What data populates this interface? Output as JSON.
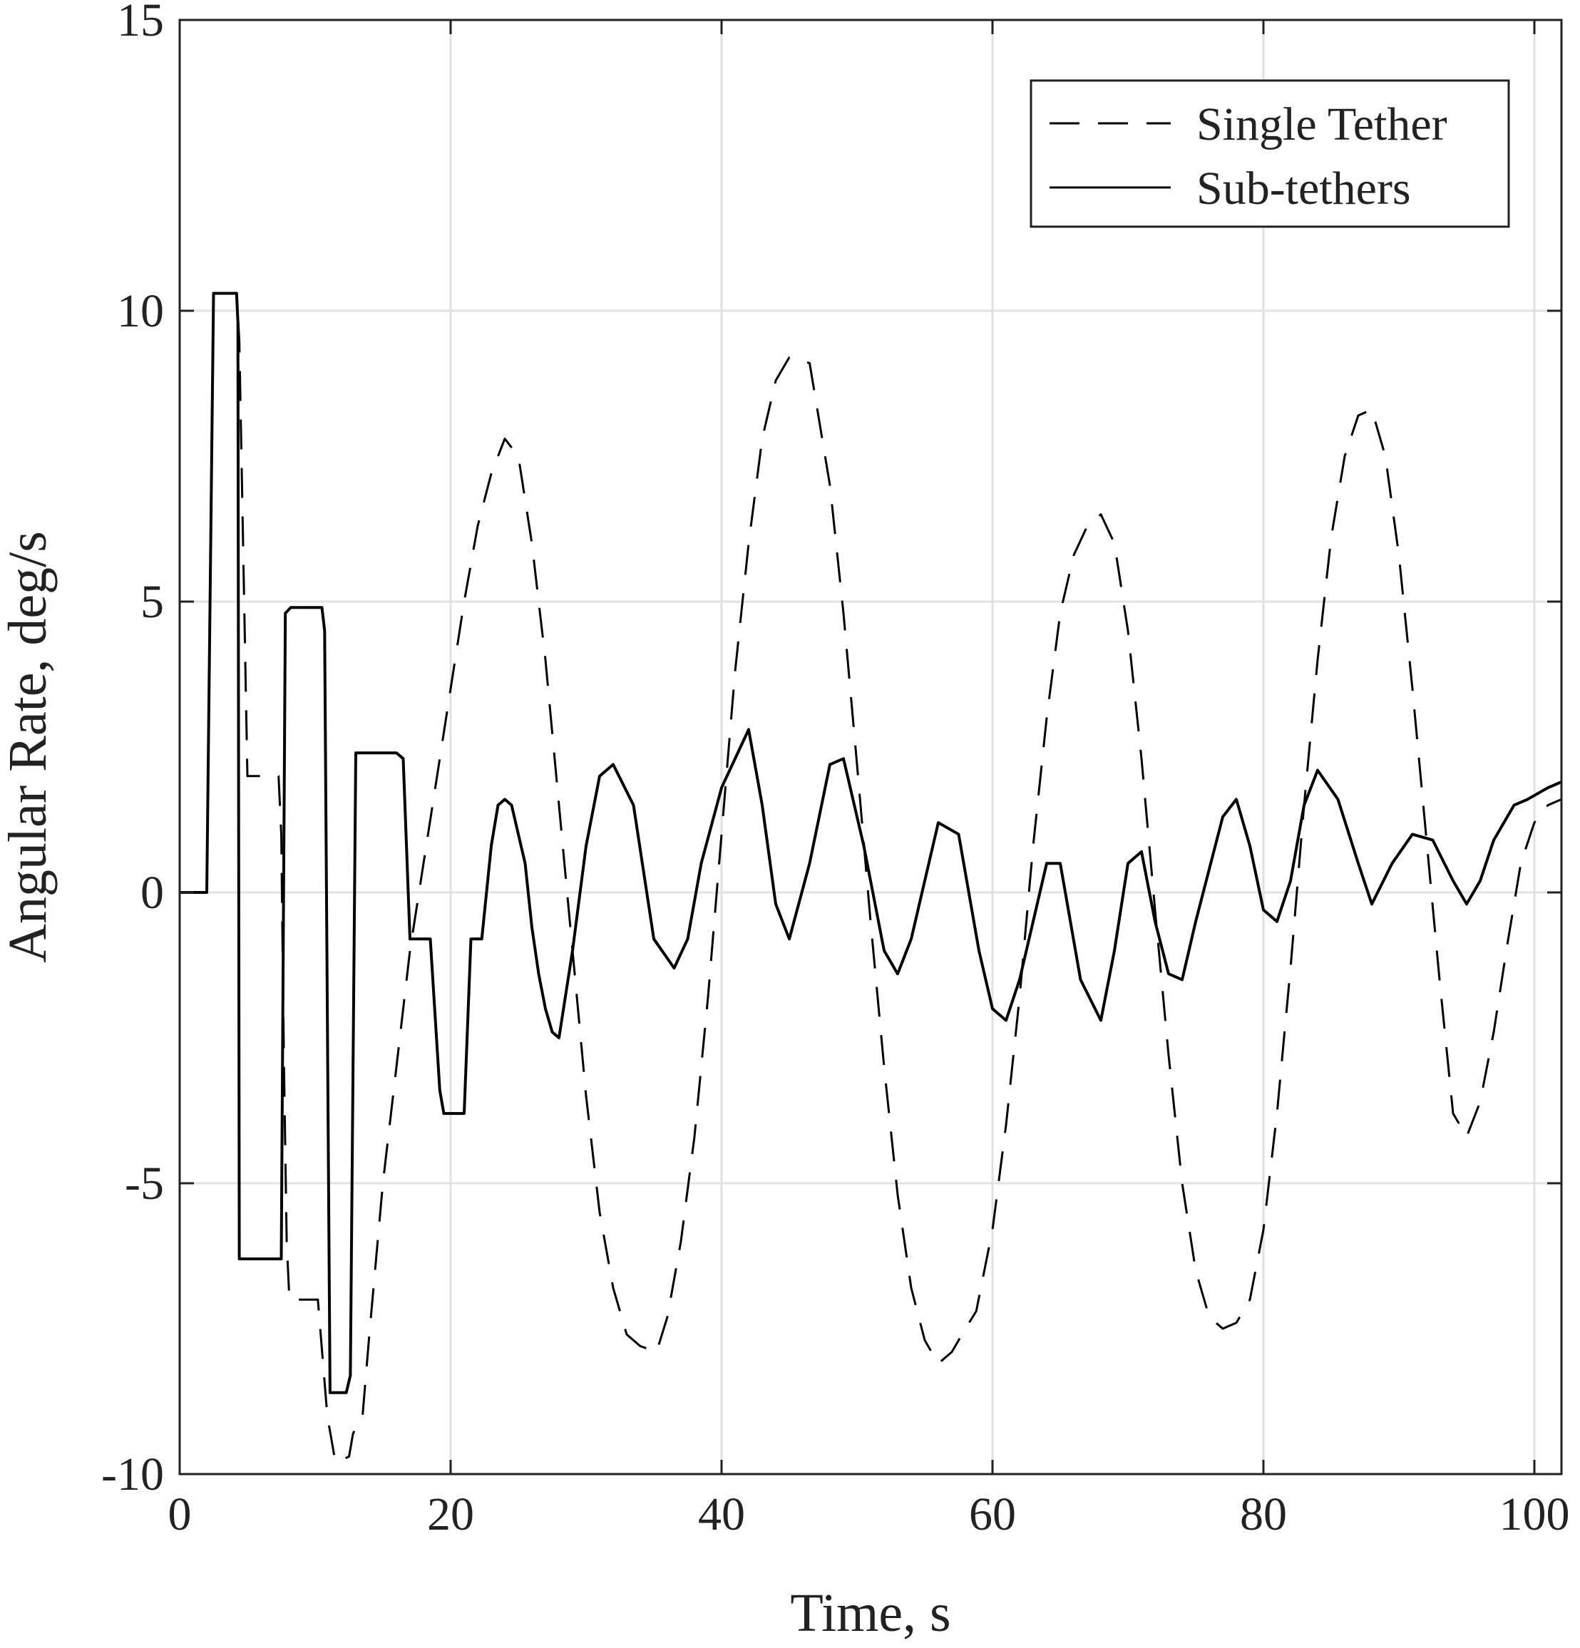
{
  "chart_data": {
    "type": "line",
    "title": "",
    "xlabel": "Time, s",
    "ylabel": "Angular Rate, deg/s",
    "xlim": [
      0,
      102
    ],
    "ylim": [
      -10,
      15
    ],
    "xticks": [
      0,
      20,
      40,
      60,
      80,
      100
    ],
    "yticks": [
      -10,
      -5,
      0,
      5,
      10,
      15
    ],
    "xtick_labels": [
      "0",
      "20",
      "40",
      "60",
      "80",
      "100"
    ],
    "ytick_labels": [
      "-10",
      "-5",
      "0",
      "5",
      "10",
      "15"
    ],
    "grid": true,
    "legend_position": "top-right",
    "series": [
      {
        "name": "Single Tether",
        "style": "dashed",
        "color": "#000000",
        "x": [
          0,
          2.0,
          2.5,
          3.0,
          4.2,
          4.4,
          5.0,
          7.3,
          7.5,
          7.7,
          7.9,
          8.1,
          10.2,
          10.9,
          11.5,
          11.5,
          12.5,
          12.8,
          13.5,
          14.0,
          15.0,
          16.0,
          17.0,
          18.0,
          19.0,
          20.0,
          21.0,
          22.0,
          23.0,
          24.0,
          25.0,
          26.0,
          27.0,
          28.0,
          29.0,
          30.0,
          31.0,
          32.0,
          33.0,
          34.0,
          35.2,
          36.0,
          37.0,
          38.0,
          39.0,
          40.0,
          41.0,
          42.0,
          43.0,
          44.0,
          45.0,
          46.5,
          48.0,
          49.0,
          50.0,
          51.0,
          52.0,
          53.0,
          54.0,
          55.0,
          56.0,
          57.0,
          58.0,
          58.8,
          60.0,
          61.0,
          62.0,
          63.0,
          64.0,
          65.0,
          66.0,
          67.0,
          68.0,
          69.0,
          70.0,
          71.0,
          72.0,
          73.0,
          74.0,
          75.0,
          76.0,
          77.0,
          78.0,
          79.0,
          80.0,
          81.0,
          82.0,
          83.0,
          84.0,
          85.0,
          86.0,
          87.0,
          88.0,
          89.0,
          90.0,
          91.0,
          92.0,
          93.0,
          94.0,
          95.0,
          96.0,
          97.0,
          98.0,
          99.0,
          100.0,
          101.0,
          102.0
        ],
        "y": [
          0,
          0,
          10.3,
          10.3,
          10.3,
          9.5,
          2.0,
          2.0,
          1.0,
          -3.0,
          -6.0,
          -7.0,
          -7.0,
          -9.0,
          -9.8,
          -9.8,
          -9.7,
          -9.3,
          -9.0,
          -7.6,
          -5.0,
          -3.0,
          -1.0,
          0.5,
          2.0,
          3.5,
          5.0,
          6.3,
          7.2,
          7.8,
          7.5,
          6.0,
          4.0,
          1.5,
          -1.0,
          -3.5,
          -5.5,
          -6.8,
          -7.6,
          -7.8,
          -7.9,
          -7.3,
          -6.0,
          -4.2,
          -1.8,
          1.0,
          3.8,
          6.0,
          7.8,
          8.8,
          9.2,
          9.1,
          7.0,
          4.8,
          2.2,
          -0.5,
          -3.0,
          -5.2,
          -6.8,
          -7.7,
          -8.1,
          -7.9,
          -7.5,
          -7.2,
          -5.8,
          -4.0,
          -1.8,
          0.8,
          3.0,
          4.8,
          5.8,
          6.3,
          6.5,
          6.0,
          4.5,
          2.3,
          -0.3,
          -2.8,
          -5.0,
          -6.5,
          -7.3,
          -7.5,
          -7.4,
          -7.0,
          -5.8,
          -3.8,
          -1.3,
          1.5,
          4.0,
          6.1,
          7.5,
          8.2,
          8.3,
          7.5,
          5.8,
          3.5,
          1.0,
          -1.5,
          -3.8,
          -4.2,
          -3.6,
          -2.4,
          -0.9,
          0.5,
          1.2,
          1.5,
          1.6
        ]
      },
      {
        "name": "Sub-tethers",
        "style": "solid",
        "color": "#000000",
        "x": [
          0,
          2.0,
          2.5,
          3.0,
          4.2,
          4.3,
          4.4,
          7.0,
          7.5,
          7.8,
          8.2,
          10.5,
          10.7,
          11.1,
          11.5,
          12.3,
          12.6,
          13.0,
          13.5,
          13.8,
          16.0,
          16.5,
          17.0,
          17.5,
          18.0,
          18.5,
          19.2,
          19.5,
          20.0,
          21.0,
          21.5,
          21.8,
          22.3,
          23.0,
          23.5,
          24.0,
          24.5,
          25.0,
          25.5,
          26.0,
          26.5,
          27.0,
          27.5,
          28.0,
          29.0,
          30.0,
          31.0,
          32.0,
          33.5,
          35.0,
          36.5,
          37.5,
          38.5,
          40.0,
          42.0,
          43.0,
          44.0,
          45.0,
          46.5,
          48.0,
          49.0,
          50.5,
          52.0,
          53.0,
          54.0,
          55.0,
          56.0,
          57.5,
          59.0,
          60.0,
          61.0,
          62.0,
          63.0,
          64.0,
          65.0,
          66.5,
          68.0,
          69.0,
          70.0,
          71.0,
          72.0,
          73.0,
          74.0,
          75.0,
          77.0,
          78.0,
          79.0,
          80.0,
          81.0,
          82.0,
          83.0,
          84.0,
          85.5,
          87.0,
          88.0,
          89.5,
          91.0,
          92.5,
          94.0,
          95.0,
          96.0,
          97.0,
          98.5,
          99.5,
          101.0,
          102.0
        ],
        "y": [
          0,
          0,
          10.3,
          10.3,
          10.3,
          9.8,
          -6.3,
          -6.3,
          -6.3,
          4.8,
          4.9,
          4.9,
          4.5,
          -8.6,
          -8.6,
          -8.6,
          -8.3,
          2.4,
          2.4,
          2.4,
          2.4,
          2.3,
          -0.8,
          -0.8,
          -0.8,
          -0.8,
          -3.4,
          -3.8,
          -3.8,
          -3.8,
          -0.8,
          -0.8,
          -0.8,
          0.8,
          1.5,
          1.6,
          1.5,
          1.0,
          0.5,
          -0.6,
          -1.4,
          -2.0,
          -2.4,
          -2.5,
          -1.0,
          0.8,
          2.0,
          2.2,
          1.5,
          -0.8,
          -1.3,
          -0.8,
          0.5,
          1.8,
          2.8,
          1.5,
          -0.2,
          -0.8,
          0.5,
          2.2,
          2.3,
          0.8,
          -1.0,
          -1.4,
          -0.8,
          0.2,
          1.2,
          1.0,
          -1.0,
          -2.0,
          -2.2,
          -1.5,
          -0.5,
          0.5,
          0.5,
          -1.5,
          -2.2,
          -1.0,
          0.5,
          0.7,
          -0.5,
          -1.4,
          -1.5,
          -0.5,
          1.3,
          1.6,
          0.8,
          -0.3,
          -0.5,
          0.2,
          1.5,
          2.1,
          1.6,
          0.5,
          -0.2,
          0.5,
          1.0,
          0.9,
          0.2,
          -0.2,
          0.2,
          0.9,
          1.5,
          1.6,
          1.8,
          1.9
        ]
      }
    ]
  }
}
